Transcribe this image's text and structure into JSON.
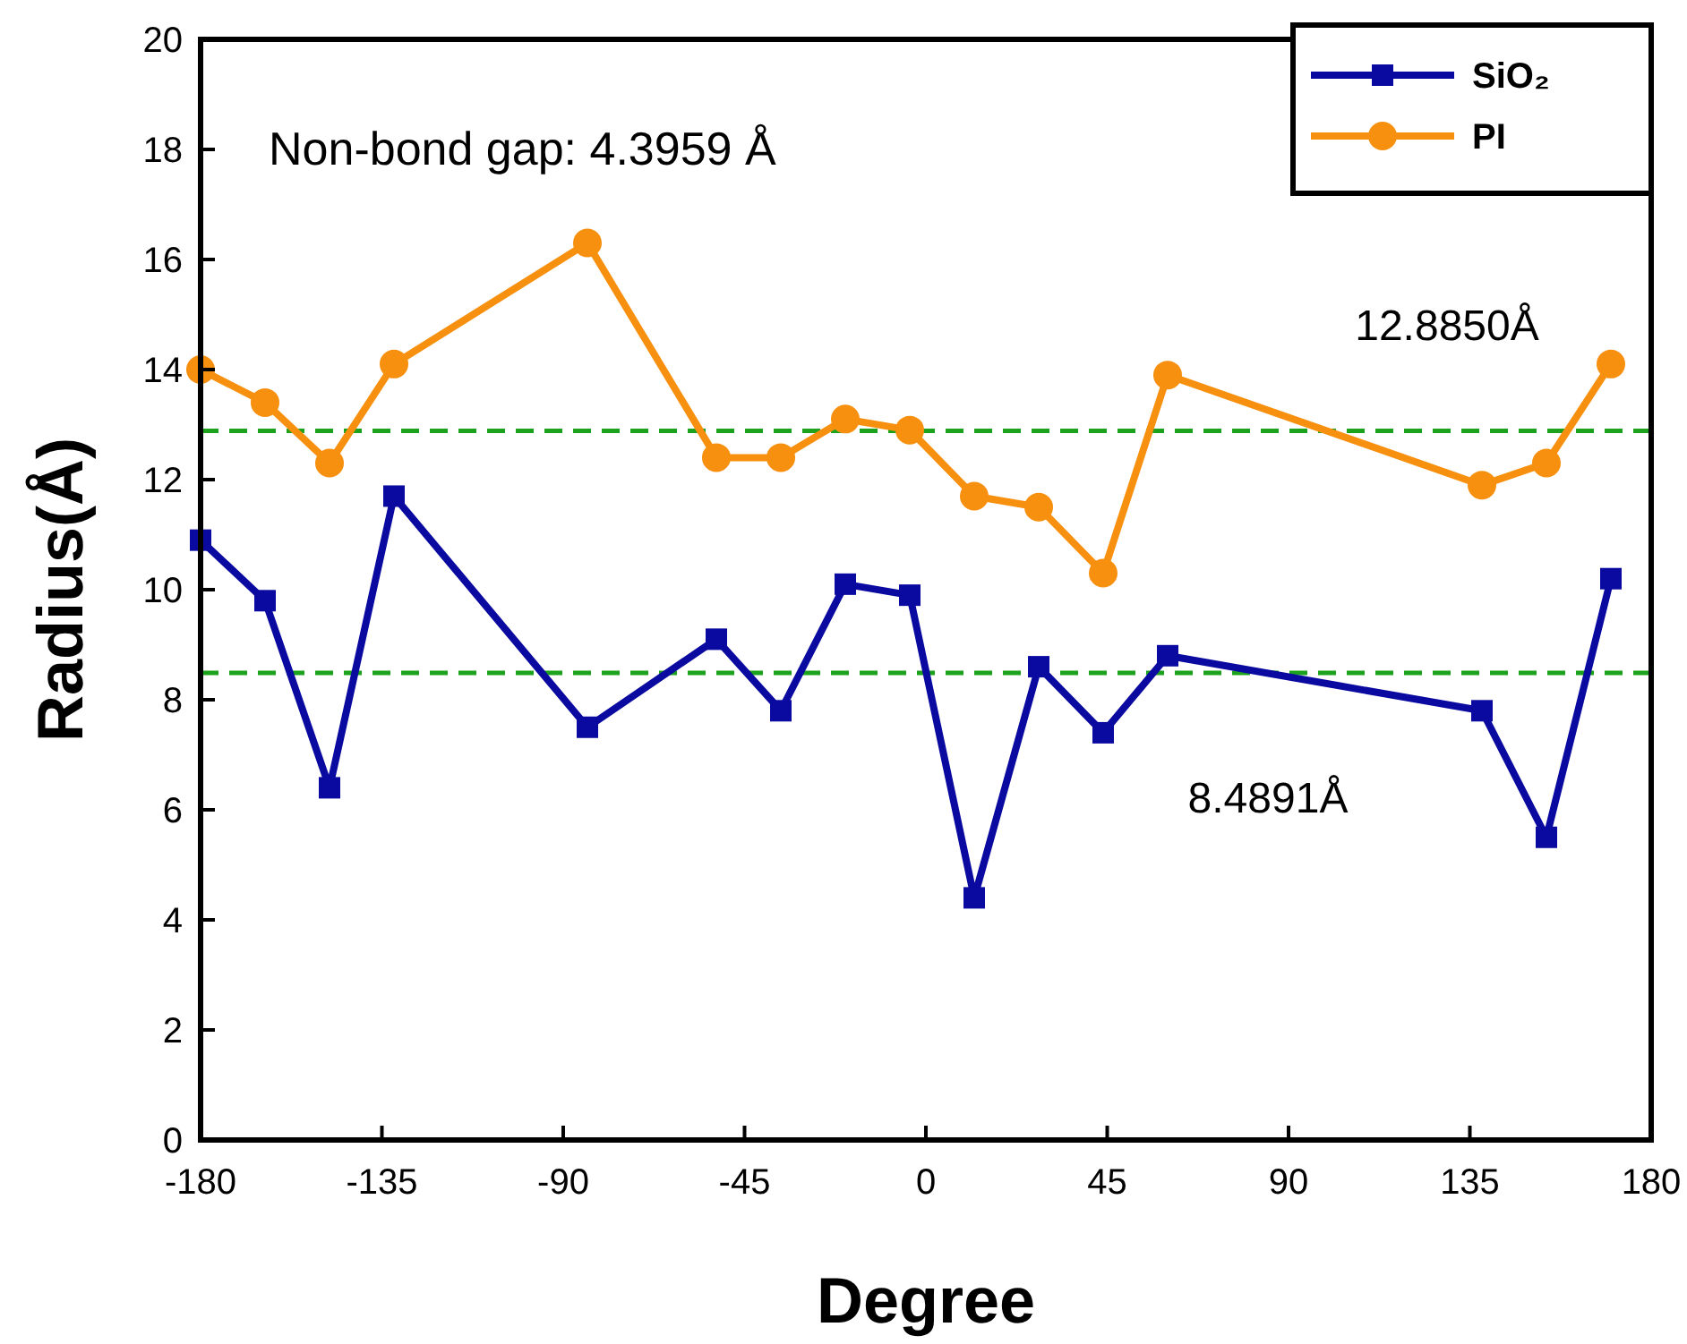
{
  "chart_data": {
    "type": "line",
    "xlabel": "Degree",
    "ylabel": "Radius(Å)",
    "xlim": [
      -180,
      180
    ],
    "xticks": [
      -180,
      -135,
      -90,
      -45,
      0,
      45,
      90,
      135,
      180
    ],
    "ylim": [
      0,
      20
    ],
    "yticks": [
      0,
      2,
      4,
      6,
      8,
      10,
      12,
      14,
      16,
      18,
      20
    ],
    "grid": false,
    "legend": "top right",
    "line_style": "solid",
    "series": [
      {
        "name": "SiO₂",
        "color": "#0a0aa0",
        "marker": "square",
        "x": [
          -180,
          -164,
          -148,
          -132,
          -84,
          -52,
          -36,
          -20,
          -4,
          12,
          28,
          44,
          60,
          138,
          154,
          170
        ],
        "values": [
          10.9,
          9.8,
          6.4,
          11.7,
          7.5,
          9.1,
          7.8,
          10.1,
          9.9,
          4.4,
          8.6,
          7.4,
          8.8,
          7.8,
          5.5,
          10.2
        ]
      },
      {
        "name": "PI",
        "color": "#f7900f",
        "marker": "circle",
        "x": [
          -180,
          -164,
          -148,
          -132,
          -84,
          -52,
          -36,
          -20,
          -4,
          12,
          28,
          44,
          60,
          138,
          154,
          170
        ],
        "values": [
          14.0,
          13.4,
          12.3,
          14.1,
          16.3,
          12.4,
          12.4,
          13.1,
          12.9,
          11.7,
          11.5,
          10.3,
          13.9,
          11.9,
          12.3,
          14.1
        ]
      }
    ],
    "ref_lines": [
      {
        "axis": "y",
        "value": 12.885,
        "label": "12.8850Å",
        "color": "#1ca21c",
        "line_style": "dashed"
      },
      {
        "axis": "y",
        "value": 8.4891,
        "label": "8.4891Å",
        "color": "#1ca21c",
        "line_style": "dashed"
      }
    ],
    "annotations": [
      "Non-bond gap: 4.3959 Å"
    ]
  }
}
